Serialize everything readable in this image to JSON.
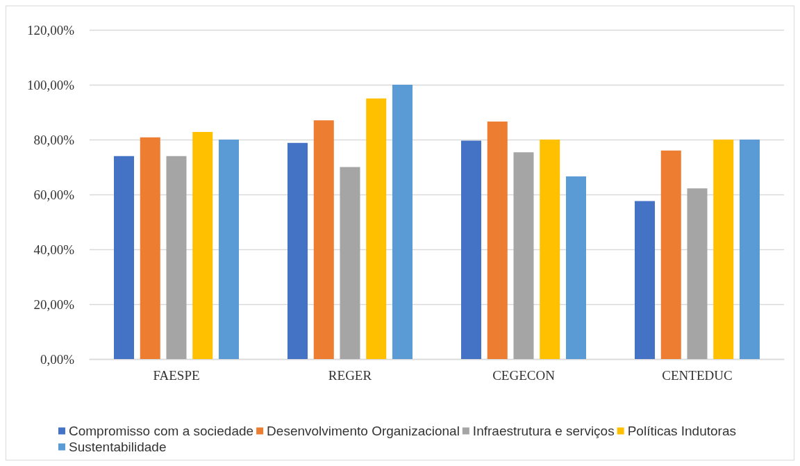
{
  "chart_data": {
    "type": "bar",
    "categories": [
      "FAESPE",
      "REGER",
      "CEGECON",
      "CENTEDUC"
    ],
    "series": [
      {
        "name": "Compromisso com a sociedade",
        "color": "#4472c4",
        "values": [
          74.0,
          78.8,
          79.6,
          57.6
        ]
      },
      {
        "name": "Desenvolvimento Organizacional",
        "color": "#ed7d31",
        "values": [
          80.8,
          87.0,
          86.6,
          76.0
        ]
      },
      {
        "name": "Infraestrutura e serviços",
        "color": "#a5a5a5",
        "values": [
          74.0,
          70.0,
          75.4,
          62.2
        ]
      },
      {
        "name": "Políticas Indutoras",
        "color": "#ffc000",
        "values": [
          82.8,
          95.0,
          80.0,
          80.0
        ]
      },
      {
        "name": "Sustentabilidade",
        "color": "#5b9bd5",
        "values": [
          80.0,
          100.0,
          66.6,
          80.0
        ]
      }
    ],
    "ylim": [
      0,
      120
    ],
    "yticks": [
      {
        "value": 0,
        "label": "0,00%"
      },
      {
        "value": 20,
        "label": "20,00%"
      },
      {
        "value": 40,
        "label": "40,00%"
      },
      {
        "value": 60,
        "label": "60,00%"
      },
      {
        "value": 80,
        "label": "80,00%"
      },
      {
        "value": 100,
        "label": "100,00%"
      },
      {
        "value": 120,
        "label": "120,00%"
      }
    ],
    "grid": "y",
    "legend": "bottom"
  }
}
